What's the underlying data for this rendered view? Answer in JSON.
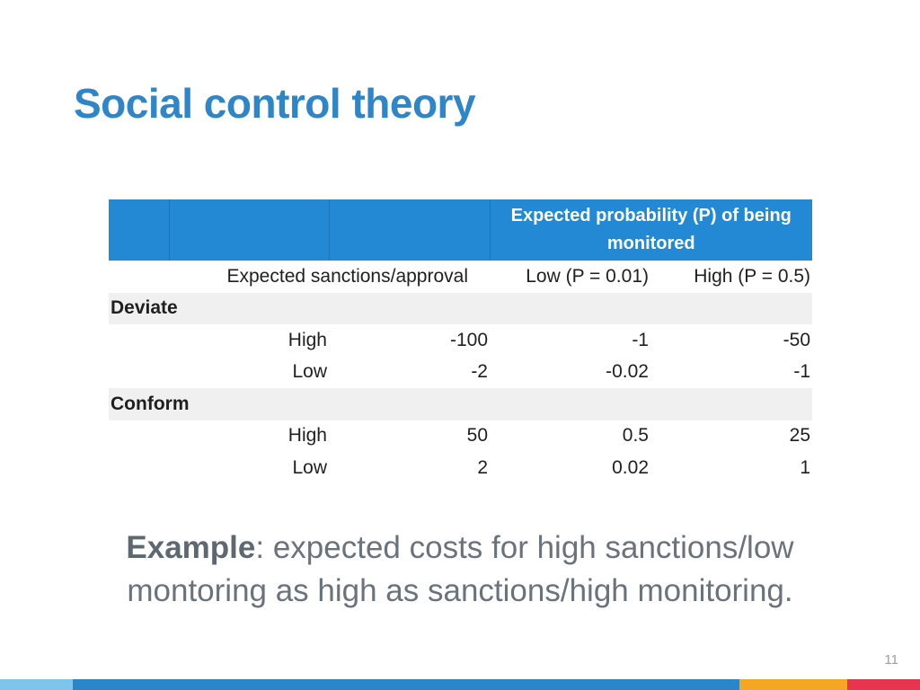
{
  "slide": {
    "title": "Social control theory",
    "page_number": "11"
  },
  "table": {
    "header_probability": "Expected probability (P) of being monitored",
    "subheader": {
      "sanctions_label": "Expected sanctions/approval",
      "low_label": "Low (P = 0.01)",
      "high_label": "High (P = 0.5)"
    },
    "groups": [
      {
        "name": "Deviate",
        "rows": [
          {
            "level": "High",
            "value": "-100",
            "low": "-1",
            "high": "-50"
          },
          {
            "level": "Low",
            "value": "-2",
            "low": "-0.02",
            "high": "-1"
          }
        ]
      },
      {
        "name": "Conform",
        "rows": [
          {
            "level": "High",
            "value": "50",
            "low": "0.5",
            "high": "25"
          },
          {
            "level": "Low",
            "value": "2",
            "low": "0.02",
            "high": "1"
          }
        ]
      }
    ]
  },
  "example": {
    "lead": "Example",
    "text": ": expected costs for high sanctions/low montoring as high as sanctions/high monitoring."
  },
  "colors": {
    "title": "#2e86c8",
    "header_fill": "#2389d4",
    "group_fill": "#f0f0f0",
    "bar_segments": [
      "#7cc6ee",
      "#2a86c9",
      "#f5a623",
      "#e8344e"
    ]
  }
}
